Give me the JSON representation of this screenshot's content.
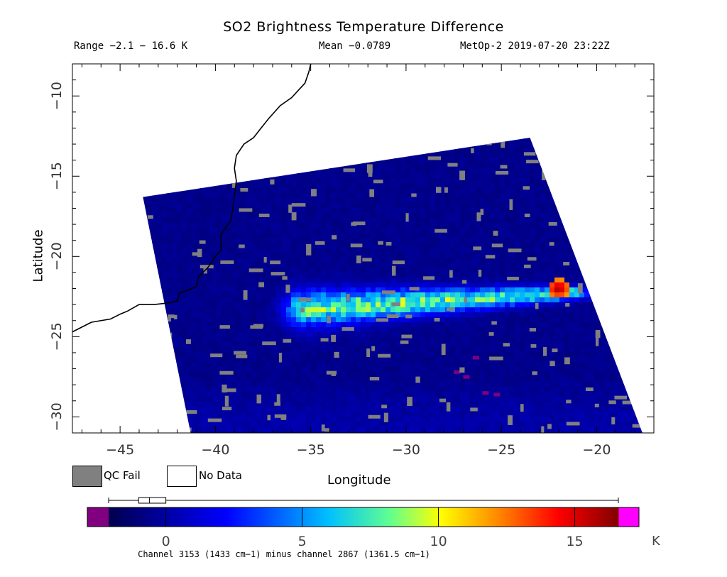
{
  "header": {
    "title": "SO2 Brightness Temperature Difference",
    "range": "Range −2.1 − 16.6 K",
    "mean": "Mean −0.0789",
    "satellite": "MetOp-2 2019-07-20 23:22Z"
  },
  "map": {
    "x_axis_title": "Longitude",
    "y_axis_title": "Latitude",
    "x_range": [
      -47.5,
      -17.0
    ],
    "y_range": [
      -31.0,
      -8.0
    ],
    "x_ticks": [
      -45,
      -40,
      -35,
      -30,
      -25,
      -20
    ],
    "y_ticks": [
      -10,
      -15,
      -20,
      -25,
      -30
    ],
    "x_tick_labels": [
      "−45",
      "−40",
      "−35",
      "−30",
      "−25",
      "−20"
    ],
    "y_tick_labels": [
      "−10",
      "−15",
      "−20",
      "−25",
      "−30"
    ],
    "coastline_lonlat": [
      [
        -47.5,
        -24.7
      ],
      [
        -46.5,
        -24.1
      ],
      [
        -45.5,
        -23.9
      ],
      [
        -45.0,
        -23.6
      ],
      [
        -44.6,
        -23.4
      ],
      [
        -44.0,
        -23.0
      ],
      [
        -43.2,
        -23.0
      ],
      [
        -42.5,
        -22.9
      ],
      [
        -42.0,
        -22.8
      ],
      [
        -41.9,
        -22.3
      ],
      [
        -41.0,
        -21.9
      ],
      [
        -40.9,
        -21.3
      ],
      [
        -40.4,
        -20.7
      ],
      [
        -40.0,
        -20.0
      ],
      [
        -39.7,
        -19.6
      ],
      [
        -39.7,
        -18.6
      ],
      [
        -39.2,
        -17.8
      ],
      [
        -39.1,
        -17.1
      ],
      [
        -39.0,
        -16.2
      ],
      [
        -38.9,
        -15.3
      ],
      [
        -39.0,
        -14.5
      ],
      [
        -38.9,
        -13.7
      ],
      [
        -38.5,
        -13.0
      ],
      [
        -38.0,
        -12.6
      ],
      [
        -37.6,
        -12.0
      ],
      [
        -37.2,
        -11.4
      ],
      [
        -36.6,
        -10.6
      ],
      [
        -36.0,
        -10.1
      ],
      [
        -35.3,
        -9.2
      ],
      [
        -35.1,
        -8.5
      ],
      [
        -35.0,
        -8.0
      ]
    ],
    "swath_corners_lonlat": [
      [
        -43.8,
        -16.3
      ],
      [
        -23.5,
        -12.6
      ],
      [
        -17.6,
        -31.0
      ],
      [
        -41.3,
        -31.0
      ]
    ],
    "plume": {
      "axis_start": [
        -35.5,
        -23.3
      ],
      "axis_end": [
        -21.5,
        -22.3
      ],
      "peak": [
        -22.0,
        -22.0
      ],
      "peak_value": 16.6,
      "core_value": 9.0
    }
  },
  "legend": {
    "qc_fail_label": "QC Fail",
    "no_data_label": "No Data",
    "qc_fail_color": "#808080",
    "no_data_color": "#ffffff"
  },
  "colorbar": {
    "unit": "K",
    "min": -2.1,
    "max": 16.6,
    "ticks": [
      0,
      5,
      10,
      15
    ],
    "tick_labels": [
      "0",
      "5",
      "10",
      "15"
    ],
    "below_color": "#800080",
    "above_color": "#ff00ff",
    "stops": [
      [
        "#00004e",
        0.0
      ],
      [
        "#0000ff",
        0.23
      ],
      [
        "#00c0ff",
        0.43
      ],
      [
        "#60ff90",
        0.55
      ],
      [
        "#ffff00",
        0.65
      ],
      [
        "#ff8000",
        0.77
      ],
      [
        "#ff0000",
        0.88
      ],
      [
        "#800000",
        1.0
      ]
    ],
    "boxplot": {
      "min": -2.1,
      "q1": -1.0,
      "median": -0.6,
      "q3": 0.0,
      "max": 16.6
    },
    "note": "Channel 3153 (1433 cm−1) minus channel 2867 (1361.5 cm−1)"
  }
}
